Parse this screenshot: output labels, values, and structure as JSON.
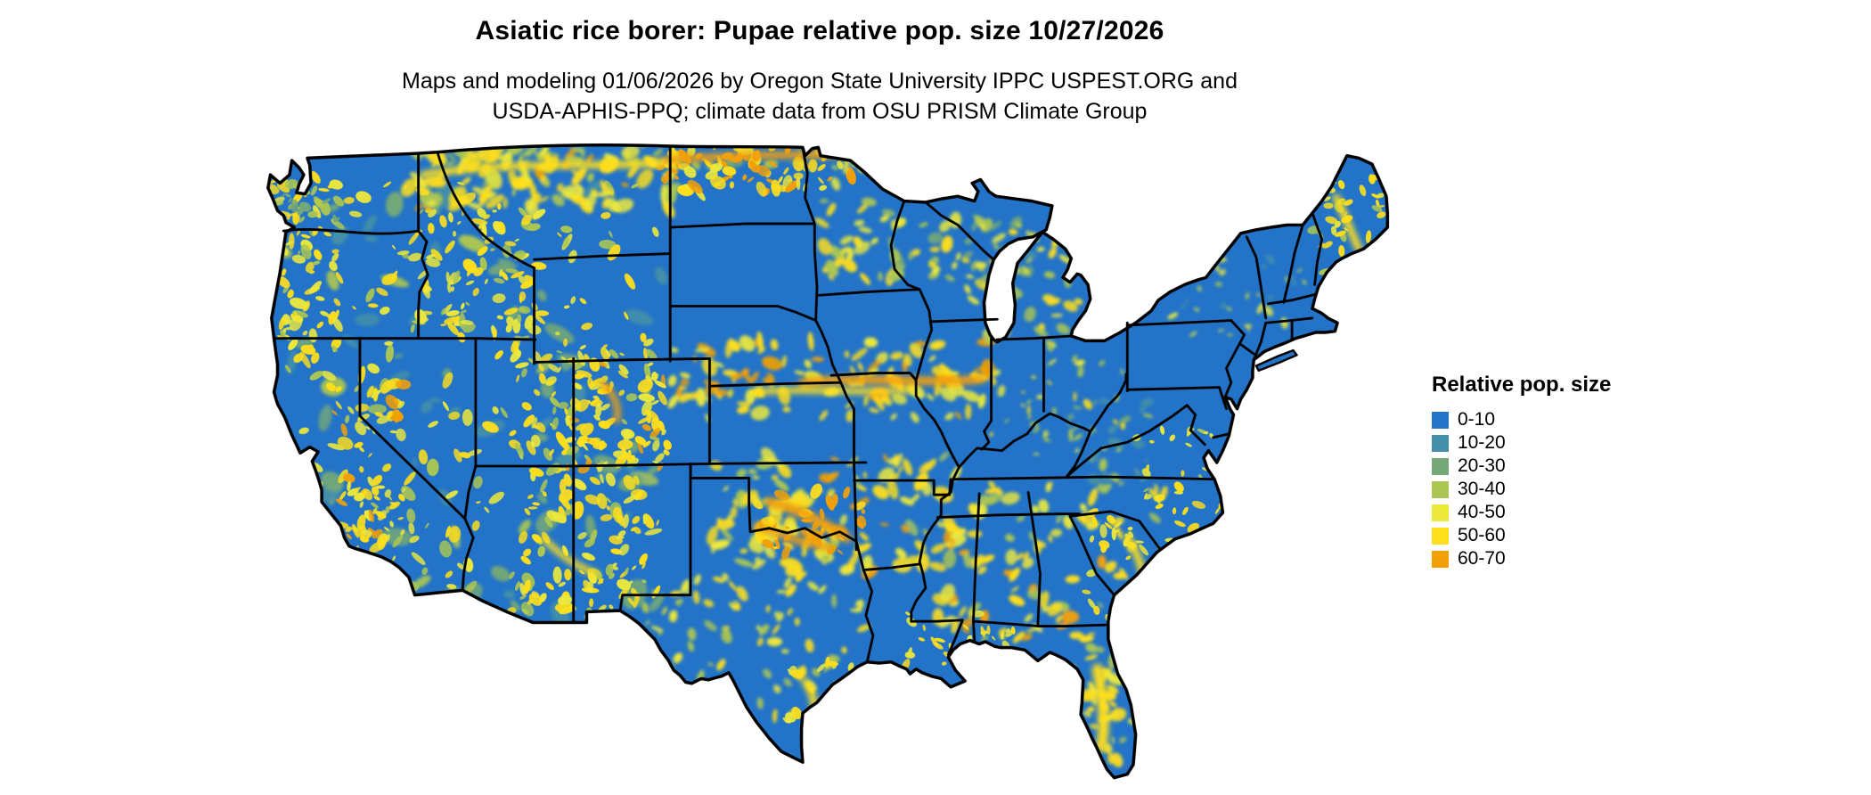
{
  "header": {
    "title": "Asiatic rice borer: Pupae relative pop. size 10/27/2026",
    "subtitle_line1": "Maps and modeling 01/06/2026 by Oregon State University IPPC USPEST.ORG and",
    "subtitle_line2": "USDA-APHIS-PPQ; climate data from OSU PRISM Climate Group"
  },
  "map": {
    "region": "Conterminous United States",
    "base_color": "#2374c8"
  },
  "legend": {
    "title": "Relative pop. size",
    "items": [
      {
        "label": "0-10",
        "color": "#2374c8"
      },
      {
        "label": "10-20",
        "color": "#4590a8"
      },
      {
        "label": "20-30",
        "color": "#74a878"
      },
      {
        "label": "30-40",
        "color": "#abc653"
      },
      {
        "label": "40-50",
        "color": "#ece83c"
      },
      {
        "label": "50-60",
        "color": "#ffdf1b"
      },
      {
        "label": "60-70",
        "color": "#f2a007"
      }
    ]
  }
}
